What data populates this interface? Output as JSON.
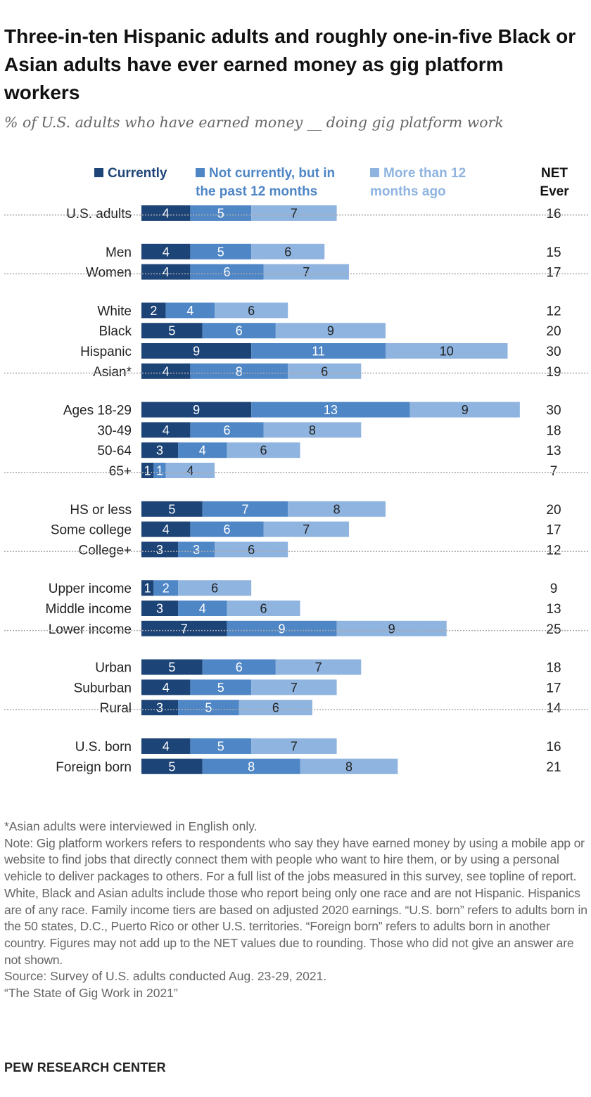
{
  "title": "Three-in-ten Hispanic adults and roughly one-in-five Black or Asian adults have ever earned money as gig platform workers",
  "subtitle": "% of U.S. adults who have earned money __ doing gig platform work",
  "legend": {
    "currently": "Currently",
    "past12": "Not currently, but in the past 12 months",
    "past12_line1": "Not currently, but in",
    "past12_line2": "the past 12 months",
    "over12": "More than 12 months ago",
    "over12_line1": "More than 12",
    "over12_line2": "months ago",
    "net_line1": "NET",
    "net_line2": "Ever"
  },
  "colors": {
    "currently": "#1d4477",
    "past12": "#4f86c6",
    "over12": "#8fb4df",
    "divider": "#aaaaaa"
  },
  "chart_data": {
    "type": "bar",
    "orientation": "horizontal",
    "stacked": true,
    "title": "Three-in-ten Hispanic adults and roughly one-in-five Black or Asian adults have ever earned money as gig platform workers",
    "subtitle": "% of U.S. adults who have earned money __ doing gig platform work",
    "series": [
      {
        "name": "Currently",
        "values": [
          4,
          4,
          4,
          2,
          5,
          9,
          4,
          9,
          4,
          3,
          1,
          5,
          4,
          3,
          1,
          3,
          7,
          5,
          4,
          3,
          4,
          5
        ]
      },
      {
        "name": "Not currently, but in the past 12 months",
        "values": [
          5,
          5,
          6,
          4,
          6,
          11,
          8,
          13,
          6,
          4,
          1,
          7,
          6,
          3,
          2,
          4,
          9,
          6,
          5,
          5,
          5,
          8
        ]
      },
      {
        "name": "More than 12 months ago",
        "values": [
          7,
          6,
          7,
          6,
          9,
          10,
          6,
          9,
          8,
          6,
          4,
          8,
          7,
          6,
          6,
          6,
          9,
          7,
          7,
          6,
          7,
          8
        ]
      }
    ],
    "groups": [
      [
        {
          "label": "U.S. adults",
          "values": [
            4,
            5,
            7
          ],
          "net": 16
        }
      ],
      [
        {
          "label": "Men",
          "values": [
            4,
            5,
            6
          ],
          "net": 15
        },
        {
          "label": "Women",
          "values": [
            4,
            6,
            7
          ],
          "net": 17
        }
      ],
      [
        {
          "label": "White",
          "values": [
            2,
            4,
            6
          ],
          "net": 12
        },
        {
          "label": "Black",
          "values": [
            5,
            6,
            9
          ],
          "net": 20
        },
        {
          "label": "Hispanic",
          "values": [
            9,
            11,
            10
          ],
          "net": 30
        },
        {
          "label": "Asian*",
          "values": [
            4,
            8,
            6
          ],
          "net": 19
        }
      ],
      [
        {
          "label": "Ages 18-29",
          "values": [
            9,
            13,
            9
          ],
          "net": 30
        },
        {
          "label": "30-49",
          "values": [
            4,
            6,
            8
          ],
          "net": 18
        },
        {
          "label": "50-64",
          "values": [
            3,
            4,
            6
          ],
          "net": 13
        },
        {
          "label": "65+",
          "values": [
            1,
            1,
            4
          ],
          "net": 7
        }
      ],
      [
        {
          "label": "HS or less",
          "values": [
            5,
            7,
            8
          ],
          "net": 20
        },
        {
          "label": "Some college",
          "values": [
            4,
            6,
            7
          ],
          "net": 17
        },
        {
          "label": "College+",
          "values": [
            3,
            3,
            6
          ],
          "net": 12
        }
      ],
      [
        {
          "label": "Upper income",
          "values": [
            1,
            2,
            6
          ],
          "net": 9
        },
        {
          "label": "Middle income",
          "values": [
            3,
            4,
            6
          ],
          "net": 13
        },
        {
          "label": "Lower income",
          "values": [
            7,
            9,
            9
          ],
          "net": 25
        }
      ],
      [
        {
          "label": "Urban",
          "values": [
            5,
            6,
            7
          ],
          "net": 18
        },
        {
          "label": "Suburban",
          "values": [
            4,
            5,
            7
          ],
          "net": 17
        },
        {
          "label": "Rural",
          "values": [
            3,
            5,
            6
          ],
          "net": 14
        }
      ],
      [
        {
          "label": "U.S. born",
          "values": [
            4,
            5,
            7
          ],
          "net": 16
        },
        {
          "label": "Foreign born",
          "values": [
            5,
            8,
            8
          ],
          "net": 21
        }
      ]
    ]
  },
  "footnotes": {
    "asterisk": "*Asian adults were interviewed in English only.",
    "note": "Note: Gig platform workers refers to respondents who say they have earned money by using a mobile app or website to find jobs that directly connect them with people who want to hire them, or by using a personal vehicle to deliver packages to others. For a full list of the jobs measured in this survey, see topline of report. White, Black and Asian adults include those who report being only one race and are not Hispanic. Hispanics are of any race. Family income tiers are based on adjusted 2020 earnings. “U.S. born” refers to adults born in the 50 states, D.C., Puerto Rico or other U.S. territories. “Foreign born” refers to adults born in another country. Figures may not add up to the NET values due to rounding. Those who did not give an answer are not shown.",
    "source": "Source: Survey of U.S. adults conducted Aug. 23-29, 2021.",
    "report": "“The State of Gig Work in 2021”"
  },
  "brand": "PEW RESEARCH CENTER"
}
